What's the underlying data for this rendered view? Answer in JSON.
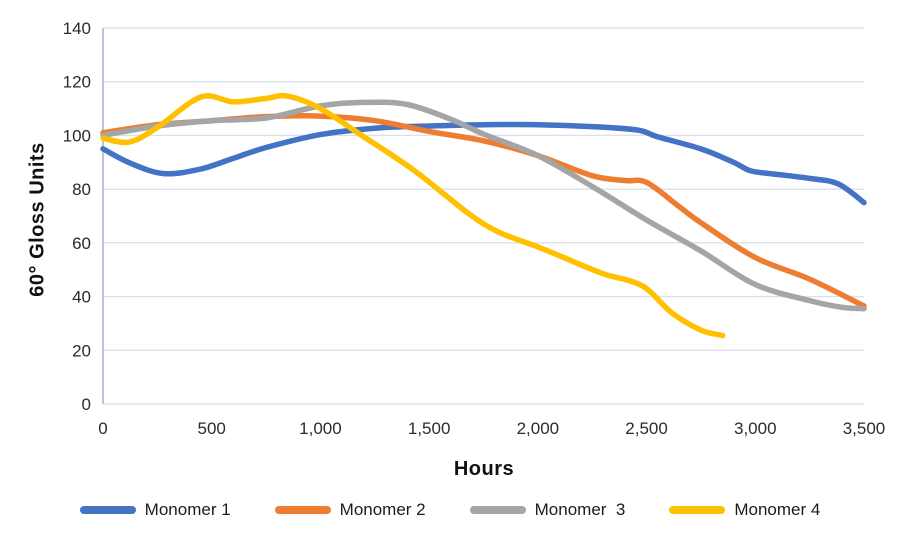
{
  "chart_data": {
    "type": "line",
    "title": "",
    "xlabel": "Hours",
    "ylabel": "60° Gloss Units",
    "xlim": [
      0,
      3500
    ],
    "ylim": [
      0,
      140
    ],
    "grid": "horizontal",
    "legend_position": "bottom",
    "x_ticks": [
      0,
      500,
      1000,
      1500,
      2000,
      2500,
      3000,
      3500
    ],
    "x_tick_labels": [
      "0",
      "500",
      "1,000",
      "1,500",
      "2,000",
      "2,500",
      "3,000",
      "3,500"
    ],
    "y_ticks": [
      0,
      20,
      40,
      60,
      80,
      100,
      120,
      140
    ],
    "y_tick_labels": [
      "0",
      "20",
      "40",
      "60",
      "80",
      "100",
      "120",
      "140"
    ],
    "axis_color": "#b3bdd1",
    "gridline_color": "#dbe0eb",
    "series": [
      {
        "name": "Monomer 1",
        "color": "#4472C4",
        "x": [
          0,
          130,
          280,
          450,
          600,
          750,
          1000,
          1250,
          1500,
          1750,
          2000,
          2250,
          2460,
          2550,
          2750,
          2900,
          2980,
          3100,
          3250,
          3380,
          3500
        ],
        "y": [
          95,
          89.5,
          85.8,
          87.5,
          91.5,
          95.5,
          100.3,
          102.7,
          103.5,
          104,
          104,
          103.3,
          102,
          99.5,
          95,
          90,
          86.8,
          85.5,
          84,
          82,
          75
        ]
      },
      {
        "name": "Monomer 2",
        "color": "#ED7D31",
        "x": [
          0,
          250,
          500,
          750,
          1000,
          1250,
          1500,
          1750,
          2000,
          2250,
          2400,
          2500,
          2650,
          2750,
          3000,
          3250,
          3500
        ],
        "y": [
          101,
          104,
          105.5,
          107,
          107.2,
          105.5,
          101.5,
          98,
          92.5,
          85,
          83.2,
          82.5,
          73.5,
          67.5,
          54.5,
          46.5,
          36.5
        ]
      },
      {
        "name": "Monomer  3",
        "color": "#A5A5A5",
        "x": [
          0,
          250,
          500,
          750,
          1000,
          1200,
          1400,
          1600,
          1750,
          2000,
          2250,
          2500,
          2750,
          3000,
          3250,
          3400,
          3500
        ],
        "y": [
          100,
          103.5,
          105.5,
          106.5,
          111,
          112.3,
          111.5,
          106,
          100.5,
          92.5,
          81,
          68.5,
          57,
          44.5,
          38.5,
          36,
          35.5
        ]
      },
      {
        "name": "Monomer 4",
        "color": "#FFC000",
        "x": [
          0,
          120,
          250,
          450,
          600,
          750,
          850,
          1000,
          1190,
          1430,
          1680,
          1820,
          2000,
          2120,
          2300,
          2480,
          2615,
          2750,
          2850
        ],
        "y": [
          99,
          97.5,
          103,
          114.3,
          112.5,
          113.8,
          114.6,
          110,
          100,
          87,
          71,
          64,
          58.5,
          54.5,
          48.5,
          44,
          34,
          27.5,
          25.5
        ]
      }
    ]
  }
}
